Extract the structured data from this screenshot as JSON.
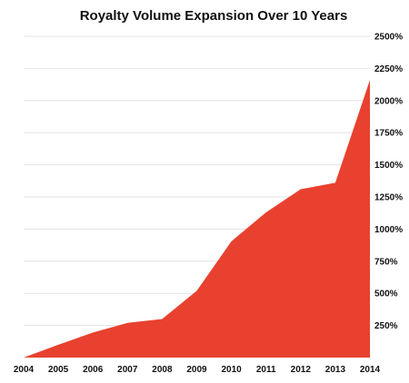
{
  "chart_data": {
    "type": "area",
    "title": "Royalty Volume Expansion Over 10 Years",
    "xlabel": "",
    "ylabel": "",
    "x": [
      "2004",
      "2005",
      "2006",
      "2007",
      "2008",
      "2009",
      "2010",
      "2011",
      "2012",
      "2013",
      "2014"
    ],
    "series": [
      {
        "values": [
          0,
          100,
          195,
          270,
          300,
          520,
          905,
          1130,
          1310,
          1360,
          2160
        ],
        "color": "#e8412f"
      }
    ],
    "ylim": [
      0,
      2500
    ],
    "y_ticks": [
      250,
      500,
      750,
      1000,
      1250,
      1500,
      1750,
      2000,
      2250,
      2500
    ],
    "y_tick_labels": [
      "250%",
      "500%",
      "750%",
      "1000%",
      "1250%",
      "1500%",
      "1750%",
      "2000%",
      "2250%",
      "2500%"
    ],
    "y_axis_position": "right",
    "grid": true,
    "legend": "none"
  }
}
